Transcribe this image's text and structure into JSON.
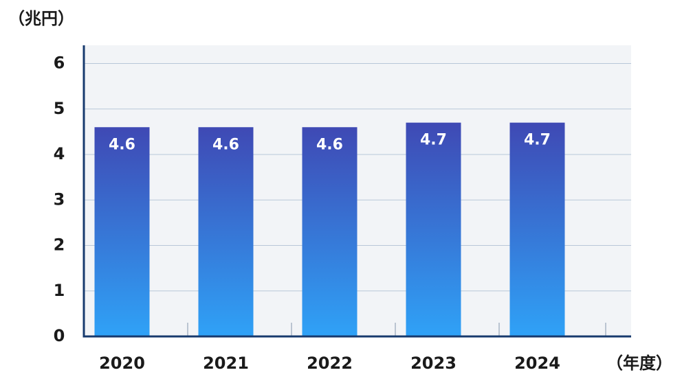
{
  "chart_data": {
    "type": "bar",
    "y_label": "（兆円）",
    "x_label": "（年度）",
    "categories": [
      "2020",
      "2021",
      "2022",
      "2023",
      "2024"
    ],
    "values": [
      4.6,
      4.6,
      4.6,
      4.7,
      4.7
    ],
    "color": [
      "#3f49b4",
      "#2fa2f7"
    ],
    "ylim": [
      0,
      6.4
    ],
    "yticks": [
      0,
      1,
      2,
      3,
      4,
      5,
      6
    ],
    "grid": true
  }
}
